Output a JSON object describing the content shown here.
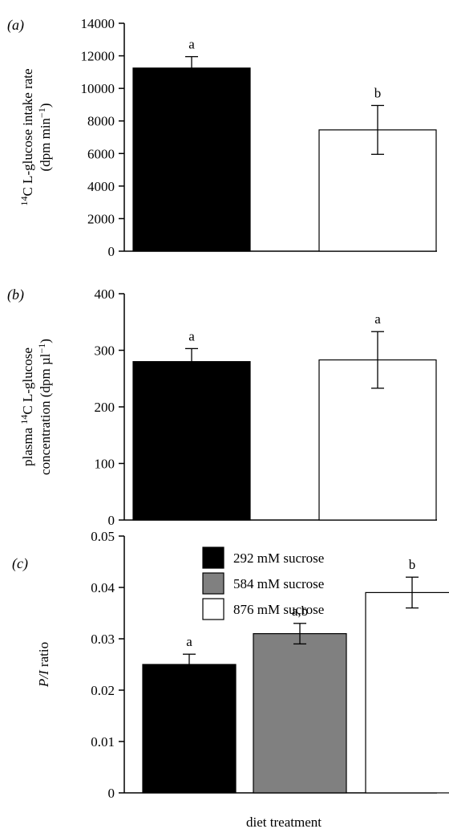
{
  "colors": {
    "292 mM sucrose": "#000000",
    "584 mM sucrose": "#808080",
    "876 mM sucrose": "#ffffff"
  },
  "chart_data": [
    {
      "panel": "(a)",
      "type": "bar",
      "categories": [
        "292 mM sucrose",
        "876 mM sucrose"
      ],
      "values": [
        11250,
        7450
      ],
      "errors": [
        700,
        1500
      ],
      "letters": [
        "a",
        "b"
      ],
      "ylabel_html": "<tspan font-size='12' dy='-6'>14</tspan><tspan dy='6'>C L-glucose intake rate</tspan>",
      "ylabel_lines": [
        "14C L-glucose intake rate",
        "(dpm min−1)"
      ],
      "ylim": [
        0,
        14000
      ],
      "yticks": [
        0,
        2000,
        4000,
        6000,
        8000,
        10000,
        12000,
        14000
      ]
    },
    {
      "panel": "(b)",
      "type": "bar",
      "categories": [
        "292 mM sucrose",
        "876 mM sucrose"
      ],
      "values": [
        280,
        283
      ],
      "errors": [
        23,
        50
      ],
      "letters": [
        "a",
        "a"
      ],
      "ylabel_lines": [
        "plasma 14C L-glucose",
        "concentration (dpm µl−1)"
      ],
      "ylim": [
        0,
        400
      ],
      "yticks": [
        0,
        100,
        200,
        300,
        400
      ]
    },
    {
      "panel": "(c)",
      "type": "bar",
      "categories": [
        "292 mM sucrose",
        "584 mM sucrose",
        "876 mM sucrose"
      ],
      "values": [
        0.025,
        0.031,
        0.039
      ],
      "errors": [
        0.002,
        0.002,
        0.003
      ],
      "letters": [
        "a",
        "a,b",
        "b"
      ],
      "ylabel_lines": [
        "P/I ratio"
      ],
      "ylim": [
        0,
        0.05
      ],
      "yticks": [
        "0",
        "0.01",
        "0.02",
        "0.03",
        "0.04",
        "0.05"
      ],
      "xlabel": "diet treatment",
      "legend": [
        "292 mM sucrose",
        "584 mM sucrose",
        "876 mM sucrose"
      ],
      "legend_position": "top-right"
    }
  ]
}
